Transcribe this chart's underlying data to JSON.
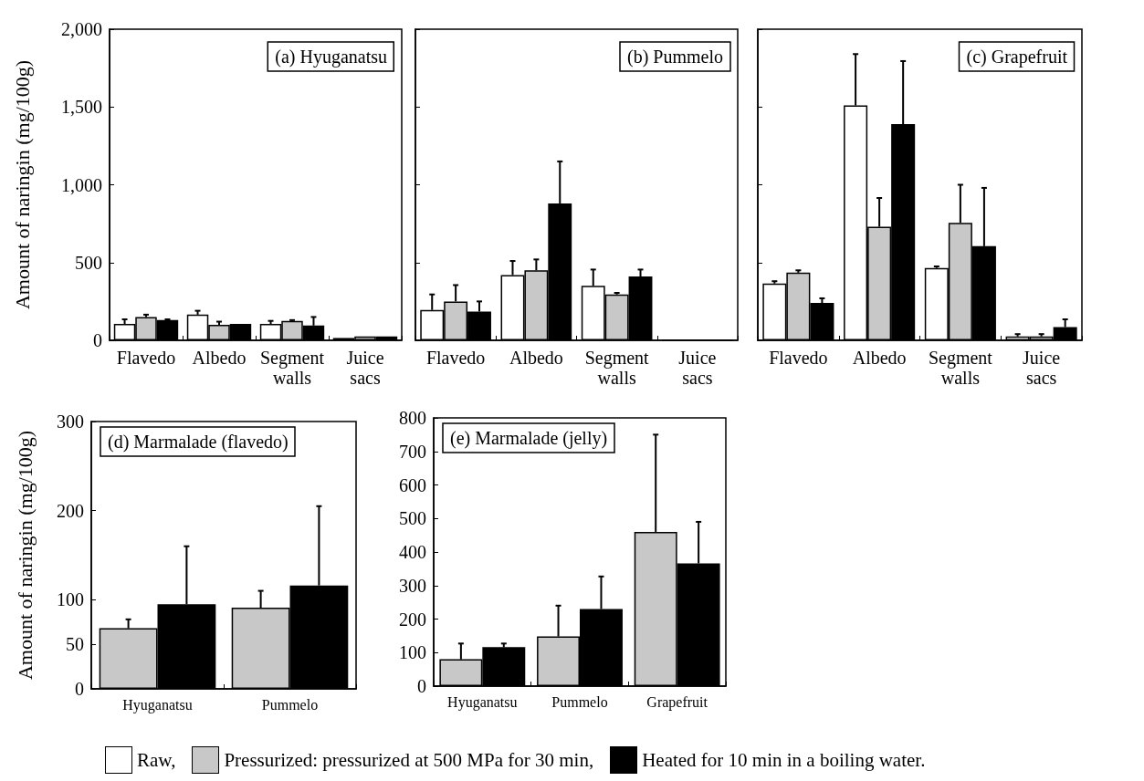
{
  "chart_data": [
    {
      "type": "bar",
      "title": "(a) Hyuganatsu",
      "ylabel": "Amount of naringin (mg/100g)",
      "categories": [
        "Flavedo",
        "Albedo",
        "Segment\nwalls",
        "Juice\nsacs"
      ],
      "series": [
        {
          "name": "Raw,",
          "color": "#ffffff",
          "values": [
            105,
            165,
            105,
            15
          ],
          "errors": [
            [
              105,
              135
            ],
            [
              165,
              190
            ],
            [
              105,
              125
            ],
            null
          ]
        },
        {
          "name": "Pressurized: pressurized at 500 MPa for 30 min,",
          "color": "#c8c8c8",
          "values": [
            150,
            100,
            125,
            25
          ],
          "errors": [
            [
              150,
              165
            ],
            [
              100,
              120
            ],
            [
              125,
              130
            ],
            null
          ]
        },
        {
          "name": "Heated for 10 min in a boiling water.",
          "color": "#000000",
          "values": [
            130,
            105,
            95,
            25
          ],
          "errors": [
            [
              130,
              135
            ],
            null,
            [
              95,
              150
            ],
            null
          ]
        }
      ],
      "ylim": [
        0,
        2000
      ],
      "yticks": [
        0,
        500,
        {
          "value": 1000,
          "label": "1,000"
        },
        {
          "value": 1500,
          "label": "1,500"
        },
        {
          "value": 2000,
          "label": "2,000"
        }
      ],
      "legend": "bottom"
    },
    {
      "type": "bar",
      "title": "(b) Pummelo",
      "categories": [
        "Flavedo",
        "Albedo",
        "Segment\nwalls",
        "Juice\nsacs"
      ],
      "series": [
        {
          "color": "#ffffff",
          "values": [
            195,
            420,
            350,
            2
          ],
          "errors": [
            [
              195,
              295
            ],
            [
              420,
              510
            ],
            [
              350,
              455
            ],
            null
          ]
        },
        {
          "color": "#c8c8c8",
          "values": [
            250,
            450,
            295,
            2
          ],
          "errors": [
            [
              250,
              355
            ],
            [
              450,
              520
            ],
            [
              295,
              305
            ],
            null
          ]
        },
        {
          "color": "#000000",
          "values": [
            185,
            880,
            410,
            2
          ],
          "errors": [
            [
              185,
              250
            ],
            [
              880,
              1150
            ],
            [
              410,
              455
            ],
            null
          ]
        }
      ],
      "ylim": [
        0,
        2000
      ],
      "yticks": [
        0,
        500,
        1000,
        1500,
        2000
      ],
      "tick_labels": "x"
    },
    {
      "type": "bar",
      "title": "(c) Grapefruit",
      "categories": [
        "Flavedo",
        "Albedo",
        "Segment\nwalls",
        "Juice\nsacs"
      ],
      "series": [
        {
          "color": "#ffffff",
          "values": [
            365,
            1510,
            465,
            25
          ],
          "errors": [
            [
              365,
              380
            ],
            [
              1510,
              1840
            ],
            [
              465,
              475
            ],
            [
              25,
              40
            ]
          ]
        },
        {
          "color": "#c8c8c8",
          "values": [
            435,
            730,
            755,
            25
          ],
          "errors": [
            [
              435,
              450
            ],
            [
              730,
              915
            ],
            [
              755,
              1000
            ],
            [
              25,
              40
            ]
          ]
        },
        {
          "color": "#000000",
          "values": [
            240,
            1390,
            605,
            85
          ],
          "errors": [
            [
              240,
              270
            ],
            [
              1390,
              1795
            ],
            [
              605,
              980
            ],
            [
              85,
              135
            ]
          ]
        }
      ],
      "ylim": [
        0,
        2000
      ],
      "yticks": [
        0,
        500,
        1000,
        1500,
        2000
      ],
      "tick_labels": "x"
    },
    {
      "type": "bar",
      "title": "(d) Marmalade (flavedo)",
      "ylabel": "Amount of naringin (mg/100g)",
      "categories": [
        "Hyuganatsu",
        "Pummelo"
      ],
      "series": [
        {
          "color": "#c8c8c8",
          "values": [
            68,
            91
          ],
          "errors": [
            [
              68,
              78
            ],
            [
              91,
              110
            ]
          ]
        },
        {
          "color": "#000000",
          "values": [
            95,
            116
          ],
          "errors": [
            [
              95,
              160
            ],
            [
              116,
              205
            ]
          ]
        }
      ],
      "ylim": [
        0,
        300
      ],
      "yticks": [
        0,
        50,
        100,
        200,
        300
      ]
    },
    {
      "type": "bar",
      "title": "(e) Marmalade (jelly)",
      "categories": [
        "Hyuganatsu",
        "Pummelo",
        "Grapefruit"
      ],
      "series": [
        {
          "color": "#c8c8c8",
          "values": [
            80,
            148,
            460
          ],
          "errors": [
            [
              80,
              127
            ],
            [
              148,
              240
            ],
            [
              460,
              750
            ]
          ]
        },
        {
          "color": "#000000",
          "values": [
            116,
            230,
            366
          ],
          "errors": [
            [
              116,
              127
            ],
            [
              230,
              327
            ],
            [
              366,
              490
            ]
          ]
        }
      ],
      "ylim": [
        0,
        800
      ],
      "yticks": [
        0,
        100,
        200,
        300,
        400,
        500,
        600,
        700,
        800
      ]
    }
  ]
}
